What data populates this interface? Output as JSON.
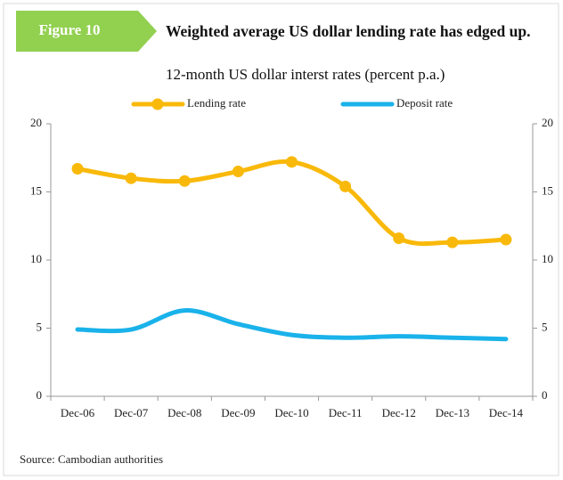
{
  "label": "Figure 10",
  "chart_data": {
    "type": "line",
    "title": "Weighted average US dollar lending rate has edged up.",
    "subtitle": "12-month US dollar interst rates (percent p.a.)",
    "categories": [
      "Dec-06",
      "Dec-07",
      "Dec-08",
      "Dec-09",
      "Dec-10",
      "Dec-11",
      "Dec-12",
      "Dec-13",
      "Dec-14"
    ],
    "series": [
      {
        "name": "Lending rate",
        "color": "#f9b90a",
        "markers": true,
        "values": [
          16.7,
          16.0,
          15.8,
          16.5,
          17.2,
          15.4,
          11.6,
          11.3,
          11.5
        ]
      },
      {
        "name": "Deposit rate",
        "color": "#1ab2ea",
        "markers": false,
        "values": [
          4.9,
          4.9,
          6.3,
          5.3,
          4.5,
          4.3,
          4.4,
          4.3,
          4.2
        ]
      }
    ],
    "ylim": [
      0,
      20
    ],
    "yticks": [
      0,
      5,
      10,
      15,
      20
    ],
    "y2lim": [
      0,
      20
    ],
    "y2ticks": [
      0,
      5,
      10,
      15,
      20
    ],
    "legend": "top",
    "grid": false
  },
  "source": "Source: Cambodian authorities"
}
